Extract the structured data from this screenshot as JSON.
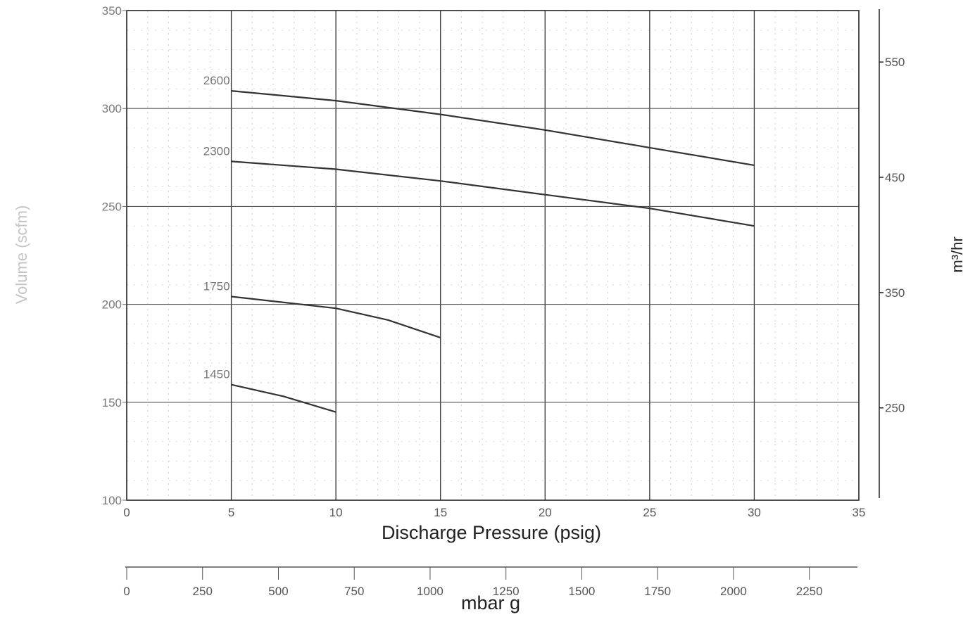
{
  "chart_data": {
    "type": "line",
    "xlabel": "Discharge Pressure (psig)",
    "ylabel": "Volume (scfm)",
    "y2label": "m³/hr",
    "x2label": "mbar g",
    "xlim": [
      0,
      35
    ],
    "ylim": [
      100,
      350
    ],
    "xticks": [
      "0",
      "5",
      "10",
      "15",
      "20",
      "25",
      "30",
      "35"
    ],
    "yticks": [
      "100",
      "150",
      "200",
      "250",
      "300",
      "350"
    ],
    "y2ticks": [
      {
        "label": "250",
        "value": 250
      },
      {
        "label": "350",
        "value": 350
      },
      {
        "label": "450",
        "value": 450
      },
      {
        "label": "550",
        "value": 550
      }
    ],
    "x2ticks": [
      {
        "label": "0",
        "value": 0
      },
      {
        "label": "250",
        "value": 250
      },
      {
        "label": "500",
        "value": 500
      },
      {
        "label": "750",
        "value": 750
      },
      {
        "label": "1000",
        "value": 1000
      },
      {
        "label": "1250",
        "value": 1250
      },
      {
        "label": "1500",
        "value": 1500
      },
      {
        "label": "1750",
        "value": 1750
      },
      {
        "label": "2000",
        "value": 2000
      },
      {
        "label": "2250",
        "value": 2250
      }
    ],
    "grid": true,
    "series": [
      {
        "name": "2600",
        "x": [
          5,
          10,
          15,
          20,
          25,
          30
        ],
        "y": [
          309,
          304,
          297,
          289,
          280,
          271
        ]
      },
      {
        "name": "2300",
        "x": [
          5,
          10,
          15,
          20,
          25,
          30
        ],
        "y": [
          273,
          269,
          263,
          256,
          249,
          240
        ]
      },
      {
        "name": "1750",
        "x": [
          5,
          10,
          12.5,
          15
        ],
        "y": [
          204,
          198,
          192,
          183
        ]
      },
      {
        "name": "1450",
        "x": [
          5,
          7.5,
          10
        ],
        "y": [
          159,
          153,
          145
        ]
      }
    ]
  }
}
